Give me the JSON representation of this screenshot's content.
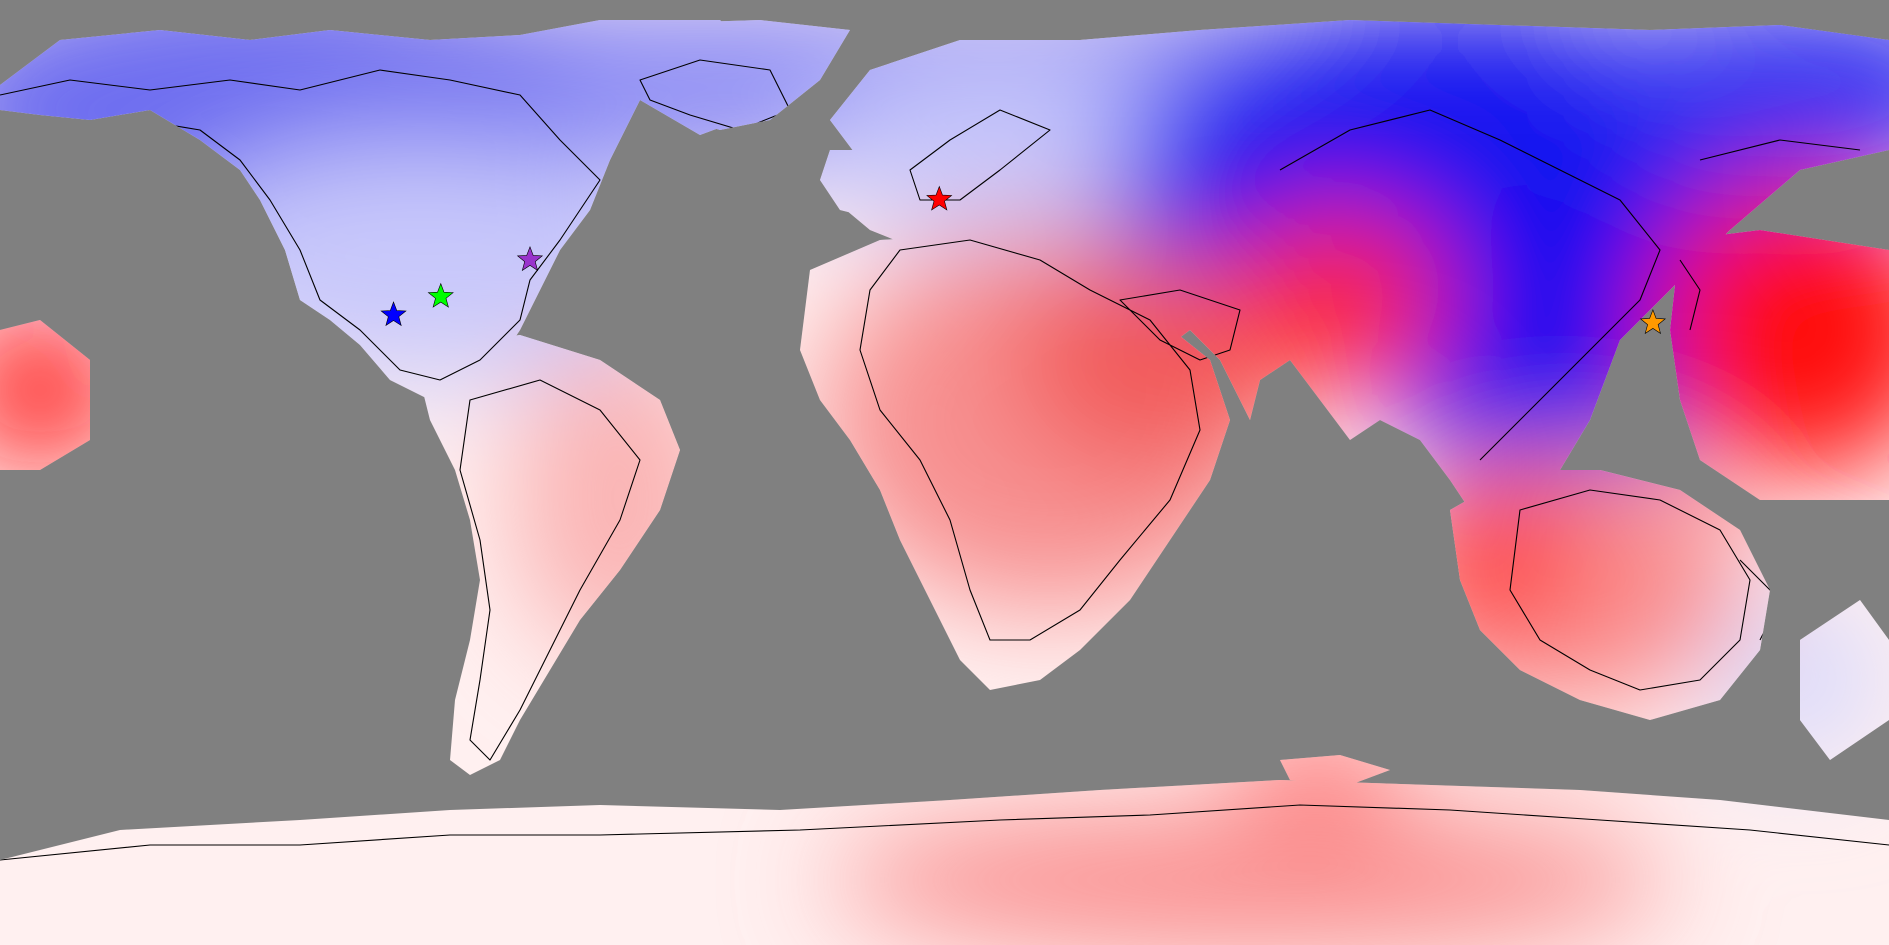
{
  "map": {
    "projection": "equirectangular",
    "background_color": "#808080",
    "coastline_color": "#000000",
    "scale_colors": {
      "strong_negative": "#0000ff",
      "neutral": "#ffffff",
      "strong_positive": "#ff0000"
    }
  },
  "markers": [
    {
      "name": "uk-star",
      "color": "#ff0000",
      "lon": -1.0,
      "lat": 52.0
    },
    {
      "name": "us-northeast-star",
      "color": "#9933cc",
      "lon": -79.0,
      "lat": 40.5
    },
    {
      "name": "us-central-star",
      "color": "#00ff00",
      "lon": -96.0,
      "lat": 33.5
    },
    {
      "name": "us-southwest-star",
      "color": "#0000ff",
      "lon": -105.0,
      "lat": 30.0
    },
    {
      "name": "china-star",
      "color": "#ff9900",
      "lon": 135.0,
      "lat": 28.5
    }
  ]
}
